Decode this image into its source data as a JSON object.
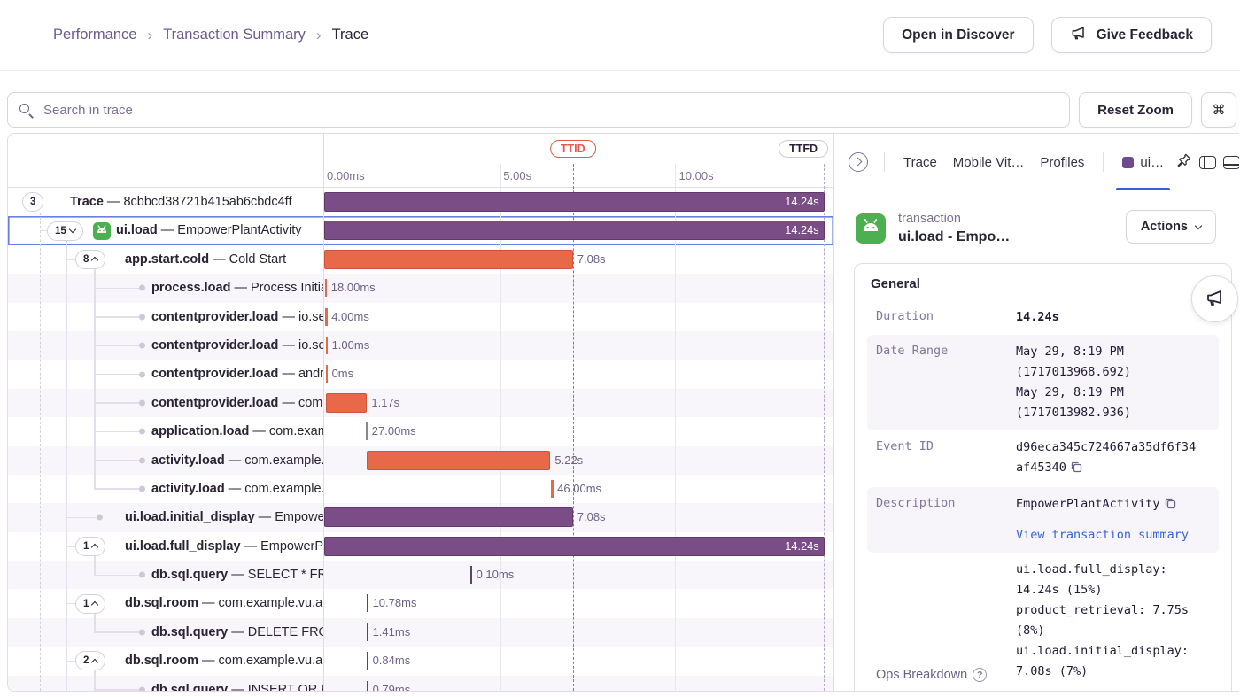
{
  "colors": {
    "span_purple": "#7a4d87",
    "span_orange": "#e8684a",
    "selected_blue": "#6b7fe3",
    "link_blue": "#3364d9",
    "ttid_red": "#e8594b",
    "android_green": "#4caf50",
    "tab_underline_blue": "#3b5bdb"
  },
  "header": {
    "breadcrumbs": [
      "Performance",
      "Transaction Summary",
      "Trace"
    ],
    "breadcrumb_separator": "›",
    "open_in_discover": "Open in Discover",
    "give_feedback": "Give Feedback"
  },
  "toolbar": {
    "search_placeholder": "Search in trace",
    "reset_zoom": "Reset Zoom",
    "shortcut": "⌘"
  },
  "icons": {
    "help": "?"
  },
  "row_separator": "—",
  "timeline": {
    "total_sec": 14.5,
    "ticks": [
      {
        "label": "0.00ms",
        "sec": 0
      },
      {
        "label": "5.00s",
        "sec": 5
      },
      {
        "label": "10.00s",
        "sec": 10
      }
    ],
    "ttid": {
      "label": "TTID",
      "sec": 7.08
    },
    "ttfd": {
      "label": "TTFD",
      "sec": 14.24
    }
  },
  "rows": [
    {
      "op": "Trace",
      "desc": "8cbbcd38721b415ab6cbdc4ff",
      "depth": 0,
      "pill": "3",
      "chevron": null,
      "bar": {
        "kind": "bar",
        "color": "purple",
        "start": 0,
        "dur": 14.24,
        "label": "14.24s",
        "inside": true
      }
    },
    {
      "op": "ui.load",
      "desc": "EmpowerPlantActivity",
      "depth": 1,
      "pill": "15",
      "chevron": "down",
      "android": true,
      "selected": true,
      "bar": {
        "kind": "bar",
        "color": "purple",
        "start": 0,
        "dur": 14.24,
        "label": "14.24s",
        "inside": true
      }
    },
    {
      "op": "app.start.cold",
      "desc": "Cold Start",
      "depth": 2,
      "pill": "8",
      "chevron": "up",
      "bar": {
        "kind": "bar",
        "color": "orange",
        "start": 0,
        "dur": 7.08,
        "label": "7.08s",
        "inside": false
      }
    },
    {
      "op": "process.load",
      "desc": "Process Initialization",
      "depth": 3,
      "dot": true,
      "bar": {
        "kind": "tick",
        "color": "orange",
        "start": 0.02,
        "label": "18.00ms"
      }
    },
    {
      "op": "contentprovider.load",
      "desc": "io.sentry.android.core.SentryPerformanceProvider",
      "depth": 3,
      "dot": true,
      "bar": {
        "kind": "tick",
        "color": "orange",
        "start": 0.03,
        "label": "4.00ms"
      }
    },
    {
      "op": "contentprovider.load",
      "desc": "io.sentry.android.core.SentryInitProvider",
      "depth": 3,
      "dot": true,
      "bar": {
        "kind": "tick",
        "color": "orange",
        "start": 0.04,
        "label": "1.00ms"
      }
    },
    {
      "op": "contentprovider.load",
      "desc": "androidx.startup.InitializationProvider",
      "depth": 3,
      "dot": true,
      "bar": {
        "kind": "tick",
        "color": "orange",
        "start": 0.04,
        "label": "0ms"
      }
    },
    {
      "op": "contentprovider.load",
      "desc": "com.example.vu.android.EmpowerPlantProvider",
      "depth": 3,
      "dot": true,
      "bar": {
        "kind": "bar",
        "color": "orange",
        "start": 0.05,
        "dur": 1.17,
        "label": "1.17s",
        "inside": false
      }
    },
    {
      "op": "application.load",
      "desc": "com.example.vu.android.EmpowerPlantApplication",
      "depth": 3,
      "dot": true,
      "bar": {
        "kind": "tick",
        "color": "gray",
        "start": 1.18,
        "label": "27.00ms"
      }
    },
    {
      "op": "activity.load",
      "desc": "com.example.vu.android.MainActivity",
      "depth": 3,
      "dot": true,
      "bar": {
        "kind": "bar",
        "color": "orange",
        "start": 1.22,
        "dur": 5.22,
        "label": "5.22s",
        "inside": false
      }
    },
    {
      "op": "activity.load",
      "desc": "com.example.vu.android.EmpowerPlantActivity",
      "depth": 3,
      "dot": true,
      "bar": {
        "kind": "tick",
        "color": "orange",
        "start": 6.46,
        "label": "46.00ms"
      }
    },
    {
      "op": "ui.load.initial_display",
      "desc": "EmpowerPlantActivity initial display",
      "depth": 2,
      "dot": true,
      "bar": {
        "kind": "bar",
        "color": "purple",
        "start": 0,
        "dur": 7.08,
        "label": "7.08s",
        "inside": false
      }
    },
    {
      "op": "ui.load.full_display",
      "desc": "EmpowerPlantActivity full display",
      "depth": 2,
      "pill": "1",
      "chevron": "up",
      "bar": {
        "kind": "bar",
        "color": "purple",
        "start": 0,
        "dur": 14.24,
        "label": "14.24s",
        "inside": true
      }
    },
    {
      "op": "db.sql.query",
      "desc": "SELECT * FROM products",
      "depth": 3,
      "dot": true,
      "bar": {
        "kind": "tick",
        "color": "purple",
        "start": 4.15,
        "label": "0.10ms"
      }
    },
    {
      "op": "db.sql.room",
      "desc": "com.example.vu.android.empowerplant",
      "depth": 2,
      "pill": "1",
      "chevron": "up",
      "bar": {
        "kind": "tick",
        "color": "purple",
        "start": 1.2,
        "label": "10.78ms"
      }
    },
    {
      "op": "db.sql.query",
      "desc": "DELETE FROM products",
      "depth": 3,
      "dot": true,
      "bar": {
        "kind": "tick",
        "color": "purple",
        "start": 1.2,
        "label": "1.41ms"
      }
    },
    {
      "op": "db.sql.room",
      "desc": "com.example.vu.android.empowerplant",
      "depth": 2,
      "pill": "2",
      "chevron": "up",
      "bar": {
        "kind": "tick",
        "color": "purple",
        "start": 1.2,
        "label": "0.84ms"
      }
    },
    {
      "op": "db.sql.query",
      "desc": "INSERT OR REPLACE INTO products",
      "depth": 3,
      "dot": true,
      "bar": {
        "kind": "tick",
        "color": "purple",
        "start": 1.2,
        "label": "0.79ms"
      }
    }
  ],
  "panel": {
    "tabs": {
      "trace": "Trace",
      "mobile_vitals": "Mobile Vit…",
      "profiles": "Profiles",
      "transaction_tab": "ui…"
    },
    "transaction": {
      "type_label": "transaction",
      "title": "ui.load - Empo…",
      "actions_label": "Actions"
    },
    "general": {
      "title": "General",
      "duration": {
        "key": "Duration",
        "value": "14.24s"
      },
      "date_range": {
        "key": "Date Range",
        "lines": [
          "May 29, 8:19 PM",
          "(1717013968.692)",
          "May 29, 8:19 PM",
          "(1717013982.936)"
        ]
      },
      "event_id": {
        "key": "Event ID",
        "value": "d96eca345c724667a35df6f34af45340"
      },
      "description": {
        "key": "Description",
        "value": "EmpowerPlantActivity",
        "link": "View transaction summary"
      },
      "ops_breakdown": {
        "key": "Ops Breakdown",
        "lines": [
          "ui.load.full_display: 14.24s (15%)",
          "product_retrieval: 7.75s (8%)",
          "ui.load.initial_display: 7.08s (7%)"
        ]
      }
    }
  }
}
